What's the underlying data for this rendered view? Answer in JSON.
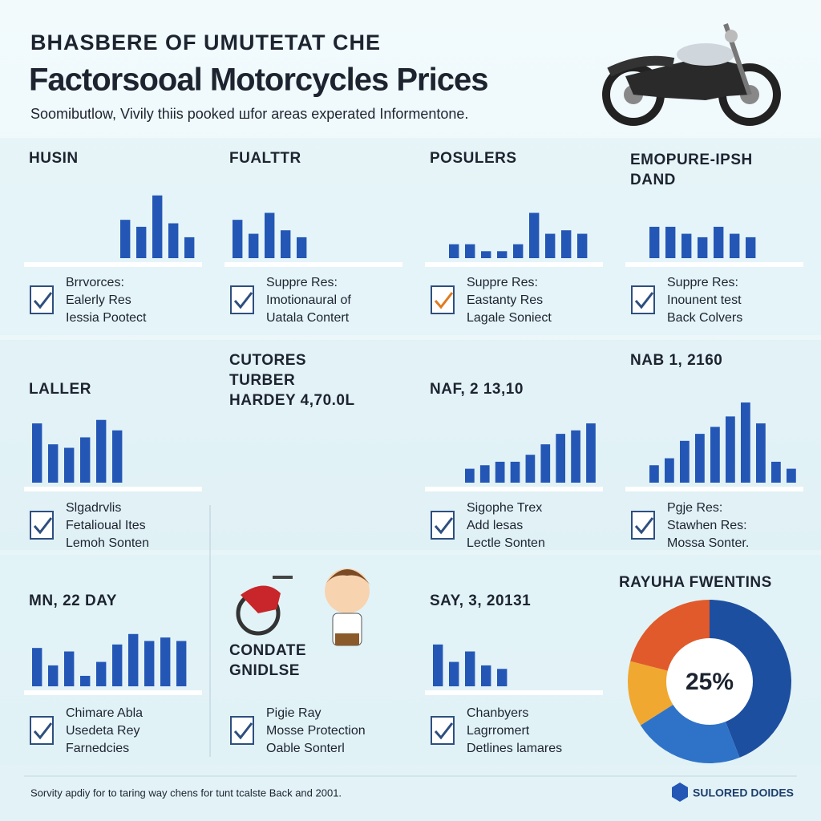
{
  "header": {
    "kicker": "BHASBERE OF UMUTETAT CHE",
    "title": "Factorsooal Motorcycles Prices",
    "subtitle": "Soomibutlow, Vivily thiis pooked шfor areas experated Informentone."
  },
  "panels": [
    {
      "title_lines": [
        "HUSIN"
      ],
      "values": [
        55,
        45,
        90,
        50,
        30
      ],
      "lines": [
        "Brrvorces:",
        "Ealerly Res",
        "Iessia Pootect"
      ]
    },
    {
      "title_lines": [
        "FUALTTR"
      ],
      "values": [
        55,
        35,
        65,
        40,
        30
      ],
      "lines": [
        "Suppre Res:",
        "Imotionaural of",
        "Uatala Contert"
      ]
    },
    {
      "title_lines": [
        "POSULERS"
      ],
      "values": [
        20,
        20,
        10,
        10,
        20,
        65,
        35,
        40,
        35
      ],
      "lines": [
        "Suppre Res:",
        "Eastanty Res",
        "Lagale Soniect"
      ]
    },
    {
      "title_lines": [
        "EMOPURE-IPSH",
        "DAND"
      ],
      "values": [
        45,
        45,
        35,
        30,
        45,
        35,
        30
      ],
      "lines": [
        "Suppre Res:",
        "Inounent test",
        "Back Colvers"
      ]
    },
    {
      "title_lines": [
        "LALLER"
      ],
      "values": [
        85,
        55,
        50,
        65,
        90,
        75
      ],
      "lines": [
        "Slgadrvlis",
        "Fetalioual Ites",
        "Lemoh Sonten"
      ]
    },
    {
      "title_lines": [
        "CUTORES",
        "TURBER",
        "HARDEY 4,70.0L"
      ],
      "values": [],
      "lines": []
    },
    {
      "title_lines": [
        "NAF, 2 13,10"
      ],
      "values": [
        20,
        25,
        30,
        30,
        40,
        55,
        70,
        75,
        85
      ],
      "lines": [
        "Sigophe Trex",
        "Add lesas",
        "Lectle Sonten"
      ]
    },
    {
      "title_lines": [
        "NAB 1, 2160"
      ],
      "values": [
        25,
        35,
        60,
        70,
        80,
        95,
        115,
        85,
        30,
        20
      ],
      "lines": [
        "Pgje Res:",
        "Stawhen Res:",
        "Mossa Sonter."
      ]
    },
    {
      "title_lines": [
        "MN, 22 DAY"
      ],
      "values": [
        55,
        30,
        50,
        15,
        35,
        60,
        75,
        65,
        70,
        65
      ],
      "lines": [
        "Chimare Abla",
        "Usedeta Rey",
        "Farnedcies"
      ]
    },
    {
      "title_lines": [
        "CONDATE",
        "GNIDLSE"
      ],
      "values": [],
      "lines": [
        "Pigie Ray",
        "Mosse Protection",
        "Oable Sonterl"
      ]
    },
    {
      "title_lines": [
        "SAY, 3, 20131"
      ],
      "values": [
        60,
        35,
        50,
        30,
        25
      ],
      "lines": [
        "Chanbyers",
        "Lagrromert",
        "Detlines lamares"
      ]
    }
  ],
  "pie": {
    "title": "RAYUHA FWENTINS",
    "center_label": "25%",
    "values": [
      44,
      22,
      13,
      21
    ],
    "colors": [
      "#1d4fa0",
      "#2f73c9",
      "#f0a830",
      "#e05a2c"
    ]
  },
  "footer": {
    "note": "Sorvity apdiy for to taring way chens for tunt tcalste Back and 2001.",
    "brand": "SULORED DOIDES"
  }
}
